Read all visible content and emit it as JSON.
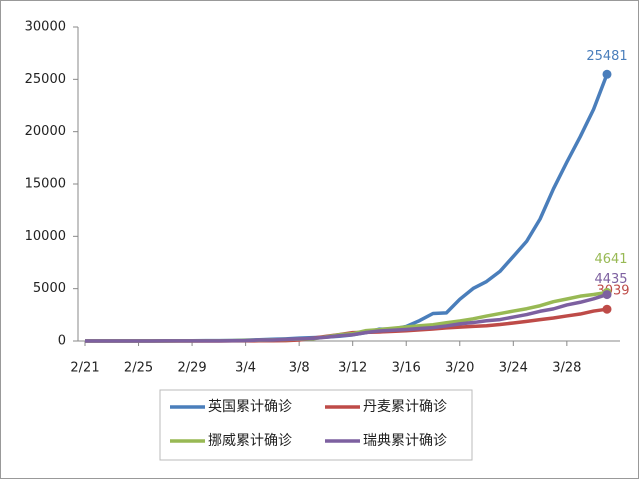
{
  "chart_data": {
    "type": "line",
    "categories": [
      "2/21",
      null,
      null,
      null,
      "2/25",
      null,
      null,
      null,
      "2/29",
      null,
      null,
      null,
      "3/4",
      null,
      null,
      null,
      "3/8",
      null,
      null,
      null,
      "3/12",
      null,
      null,
      null,
      "3/16",
      null,
      null,
      null,
      "3/20",
      null,
      null,
      null,
      "3/24",
      null,
      null,
      null,
      "3/28",
      null,
      null,
      null
    ],
    "ylim": [
      0,
      30000
    ],
    "yticks": [
      0,
      5000,
      10000,
      15000,
      20000,
      25000,
      30000
    ],
    "grid": false,
    "legend": "bottom",
    "series": [
      {
        "name": "英国累计确诊",
        "color": "#4a7ebb",
        "values": [
          9,
          9,
          13,
          13,
          13,
          13,
          15,
          20,
          23,
          36,
          40,
          51,
          85,
          115,
          163,
          206,
          273,
          321,
          373,
          456,
          590,
          798,
          1140,
          1140,
          1391,
          1950,
          2626,
          2689,
          3983,
          5018,
          5683,
          6650,
          8077,
          9529,
          11658,
          14543,
          17089,
          19522,
          22141,
          25481
        ]
      },
      {
        "name": "丹麦累计确诊",
        "color": "#be4b48",
        "values": [
          0,
          0,
          0,
          0,
          0,
          0,
          1,
          1,
          1,
          1,
          4,
          6,
          10,
          20,
          23,
          31,
          91,
          262,
          442,
          615,
          801,
          827,
          864,
          914,
          977,
          1057,
          1151,
          1255,
          1326,
          1395,
          1460,
          1577,
          1724,
          1877,
          2046,
          2201,
          2395,
          2577,
          2860,
          3039
        ]
      },
      {
        "name": "挪威累计确诊",
        "color": "#98b954",
        "values": [
          0,
          0,
          0,
          0,
          0,
          1,
          1,
          6,
          15,
          19,
          25,
          32,
          56,
          87,
          108,
          147,
          176,
          205,
          400,
          598,
          702,
          996,
          1090,
          1221,
          1333,
          1463,
          1550,
          1746,
          1914,
          2118,
          2385,
          2621,
          2863,
          3084,
          3369,
          3755,
          4015,
          4284,
          4445,
          4641
        ]
      },
      {
        "name": "瑞典累计确诊",
        "color": "#7d60a0",
        "values": [
          0,
          0,
          0,
          0,
          0,
          1,
          7,
          12,
          13,
          14,
          15,
          21,
          35,
          94,
          101,
          161,
          203,
          248,
          355,
          500,
          599,
          814,
          961,
          1022,
          1103,
          1190,
          1279,
          1439,
          1639,
          1763,
          1934,
          2046,
          2286,
          2526,
          2840,
          3069,
          3447,
          3700,
          4028,
          4435
        ]
      }
    ]
  }
}
